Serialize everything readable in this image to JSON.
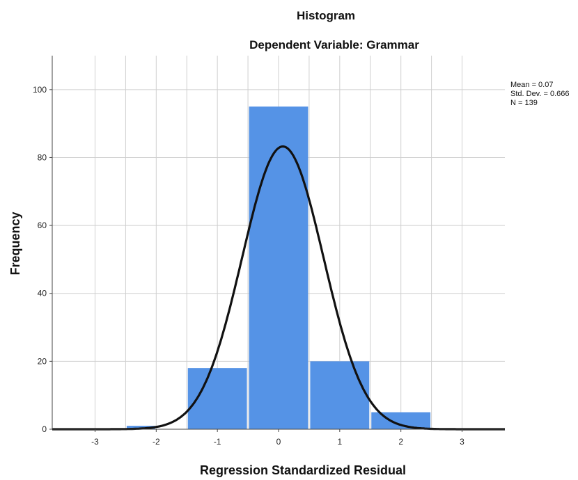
{
  "chart_data": {
    "type": "bar",
    "title": "Histogram",
    "subtitle": "Dependent Variable: Grammar",
    "xlabel": "Regression Standardized Residual",
    "ylabel": "Frequency",
    "bins": [
      {
        "start": -2.5,
        "end": -2.0,
        "value": 1
      },
      {
        "start": -1.5,
        "end": -0.5,
        "value": 18
      },
      {
        "start": -0.5,
        "end": 0.5,
        "value": 95
      },
      {
        "start": 0.5,
        "end": 1.5,
        "value": 20
      },
      {
        "start": 1.5,
        "end": 2.5,
        "value": 5
      }
    ],
    "normal_curve": {
      "mean": 0.07,
      "std": 0.666,
      "n": 139,
      "bin_width": 1.0
    },
    "xlim": [
      -3.7,
      3.7
    ],
    "ylim": [
      0,
      110
    ],
    "xticks": [
      -3,
      -2,
      -1,
      0,
      1,
      2,
      3
    ],
    "xtick_labels": [
      "-3",
      "-2",
      "-1",
      "0",
      "1",
      "2",
      "3"
    ],
    "yticks": [
      0,
      20,
      40,
      60,
      80,
      100
    ],
    "ytick_labels": [
      "0",
      "20",
      "40",
      "60",
      "80",
      "100"
    ],
    "grid": true,
    "stats_text": [
      "Mean = 0.07",
      "Std. Dev. = 0.666",
      "N = 139"
    ],
    "colors": {
      "bar": "#5593e6",
      "curve": "#111111",
      "grid": "#cfcfcf"
    }
  }
}
